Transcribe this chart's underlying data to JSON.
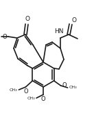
{
  "bg_color": "#ffffff",
  "line_color": "#1a1a1a",
  "line_width": 1.2,
  "figsize": [
    1.37,
    1.68
  ],
  "dpi": 100,
  "xlim": [
    0,
    137
  ],
  "ylim": [
    0,
    168
  ]
}
